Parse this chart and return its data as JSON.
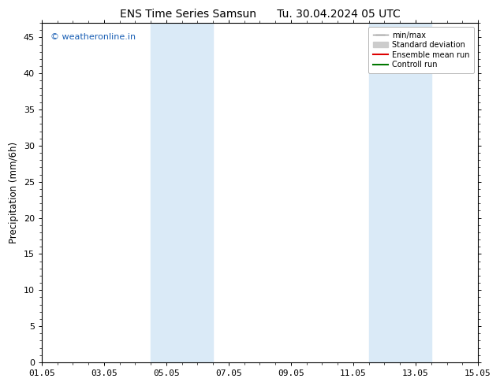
{
  "title": "ENS Time Series Samsun      Tu. 30.04.2024 05 UTC",
  "ylabel": "Precipitation (mm/6h)",
  "xlabel": "",
  "ylim": [
    0,
    47
  ],
  "yticks": [
    0,
    5,
    10,
    15,
    20,
    25,
    30,
    35,
    40,
    45
  ],
  "xtick_labels": [
    "01.05",
    "03.05",
    "05.05",
    "07.05",
    "09.05",
    "11.05",
    "13.05",
    "15.05"
  ],
  "xtick_positions": [
    0,
    2,
    4,
    6,
    8,
    10,
    12,
    14
  ],
  "xlim": [
    0,
    14
  ],
  "shade_regions": [
    {
      "xmin": 3.5,
      "xmax": 5.5
    },
    {
      "xmin": 10.5,
      "xmax": 12.5
    }
  ],
  "shade_color": "#daeaf7",
  "shade_alpha": 1.0,
  "watermark": "© weatheronline.in",
  "watermark_color": "#1a5fb4",
  "legend_entries": [
    {
      "label": "min/max",
      "color": "#999999",
      "lw": 1.0
    },
    {
      "label": "Standard deviation",
      "color": "#cccccc",
      "lw": 5
    },
    {
      "label": "Ensemble mean run",
      "color": "#dd0000",
      "lw": 1.5
    },
    {
      "label": "Controll run",
      "color": "#007700",
      "lw": 1.5
    }
  ],
  "bg_color": "#ffffff",
  "title_fontsize": 10,
  "tick_fontsize": 8,
  "ylabel_fontsize": 8.5
}
